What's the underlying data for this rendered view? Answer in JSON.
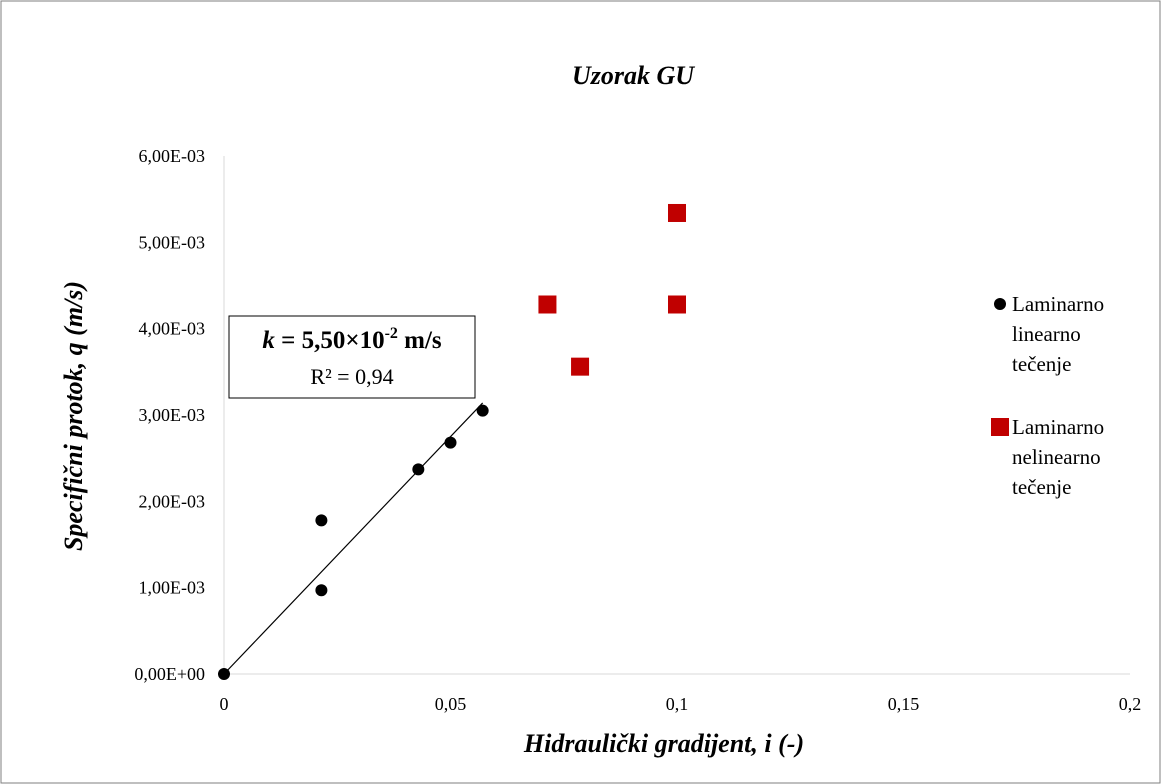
{
  "chart_data": {
    "type": "scatter",
    "title": "Uzorak GU",
    "xlabel": "Hidraulički gradijent, i (-)",
    "ylabel": "Specifični protok, q (m/s)",
    "xlim": [
      0,
      0.2
    ],
    "ylim": [
      0,
      0.006
    ],
    "x_ticks": [
      0,
      0.05,
      0.1,
      0.15,
      0.2
    ],
    "x_tick_labels": [
      "0",
      "0,05",
      "0,1",
      "0,15",
      "0,2"
    ],
    "y_ticks": [
      0,
      0.001,
      0.002,
      0.003,
      0.004,
      0.005,
      0.006
    ],
    "y_tick_labels": [
      "0,00E+00",
      "1,00E-03",
      "2,00E-03",
      "3,00E-03",
      "4,00E-03",
      "5,00E-03",
      "6,00E-03"
    ],
    "grid": false,
    "legend_position": "right",
    "series": [
      {
        "name": "Laminarno linearno tečenje",
        "legend_lines": [
          "Laminarno",
          "linearno",
          "tečenje"
        ],
        "marker": "circle",
        "color": "#000000",
        "points": [
          [
            0,
            0
          ],
          [
            0.0215,
            0.00097
          ],
          [
            0.0215,
            0.00178
          ],
          [
            0.0429,
            0.00237
          ],
          [
            0.05,
            0.00268
          ],
          [
            0.0571,
            0.00305
          ]
        ]
      },
      {
        "name": "Laminarno nelinearno tečenje",
        "legend_lines": [
          "Laminarno",
          "nelinearno",
          "tečenje"
        ],
        "marker": "square",
        "color": "#C00000",
        "points": [
          [
            0.0714,
            0.00428
          ],
          [
            0.0786,
            0.00356
          ],
          [
            0.1,
            0.00428
          ],
          [
            0.1,
            0.00534
          ]
        ]
      }
    ],
    "trendline": {
      "series": "Laminarno linearno tečenje",
      "x": [
        0,
        0.0571
      ],
      "y": [
        0,
        0.00314
      ],
      "color": "#000000"
    },
    "annotation": {
      "k_label": "k",
      "k_equals": " = 5,50×10",
      "k_exponent": "-2",
      "k_unit": " m/s",
      "r2": "R² = 0,94"
    }
  }
}
